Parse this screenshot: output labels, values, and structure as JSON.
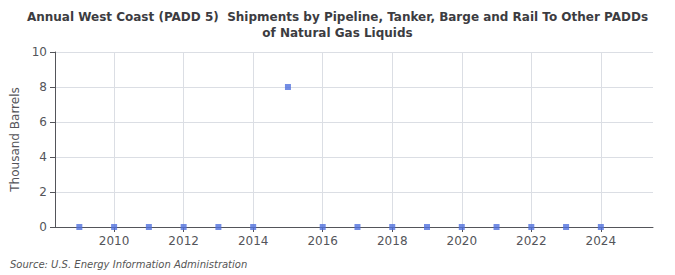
{
  "chart_data": {
    "type": "scatter",
    "title": "Annual West Coast (PADD 5)  Shipments by Pipeline, Tanker, Barge and Rail To Other PADDs\nof Natural Gas Liquids",
    "ylabel": "Thousand Barrels",
    "source": "Source: U.S. Energy Information Administration",
    "x": [
      2009,
      2010,
      2011,
      2012,
      2013,
      2014,
      2015,
      2016,
      2017,
      2018,
      2019,
      2020,
      2021,
      2022,
      2023,
      2024
    ],
    "values": [
      0,
      0,
      0,
      0,
      0,
      0,
      8,
      0,
      0,
      0,
      0,
      0,
      0,
      0,
      0,
      0
    ],
    "marker": "square",
    "xlim": [
      2008.3,
      2025.5
    ],
    "xticks": [
      2010,
      2012,
      2014,
      2016,
      2018,
      2020,
      2022,
      2024
    ],
    "ylim": [
      0,
      10
    ],
    "yticks": [
      0,
      2,
      4,
      6,
      8,
      10
    ],
    "grid": true
  }
}
